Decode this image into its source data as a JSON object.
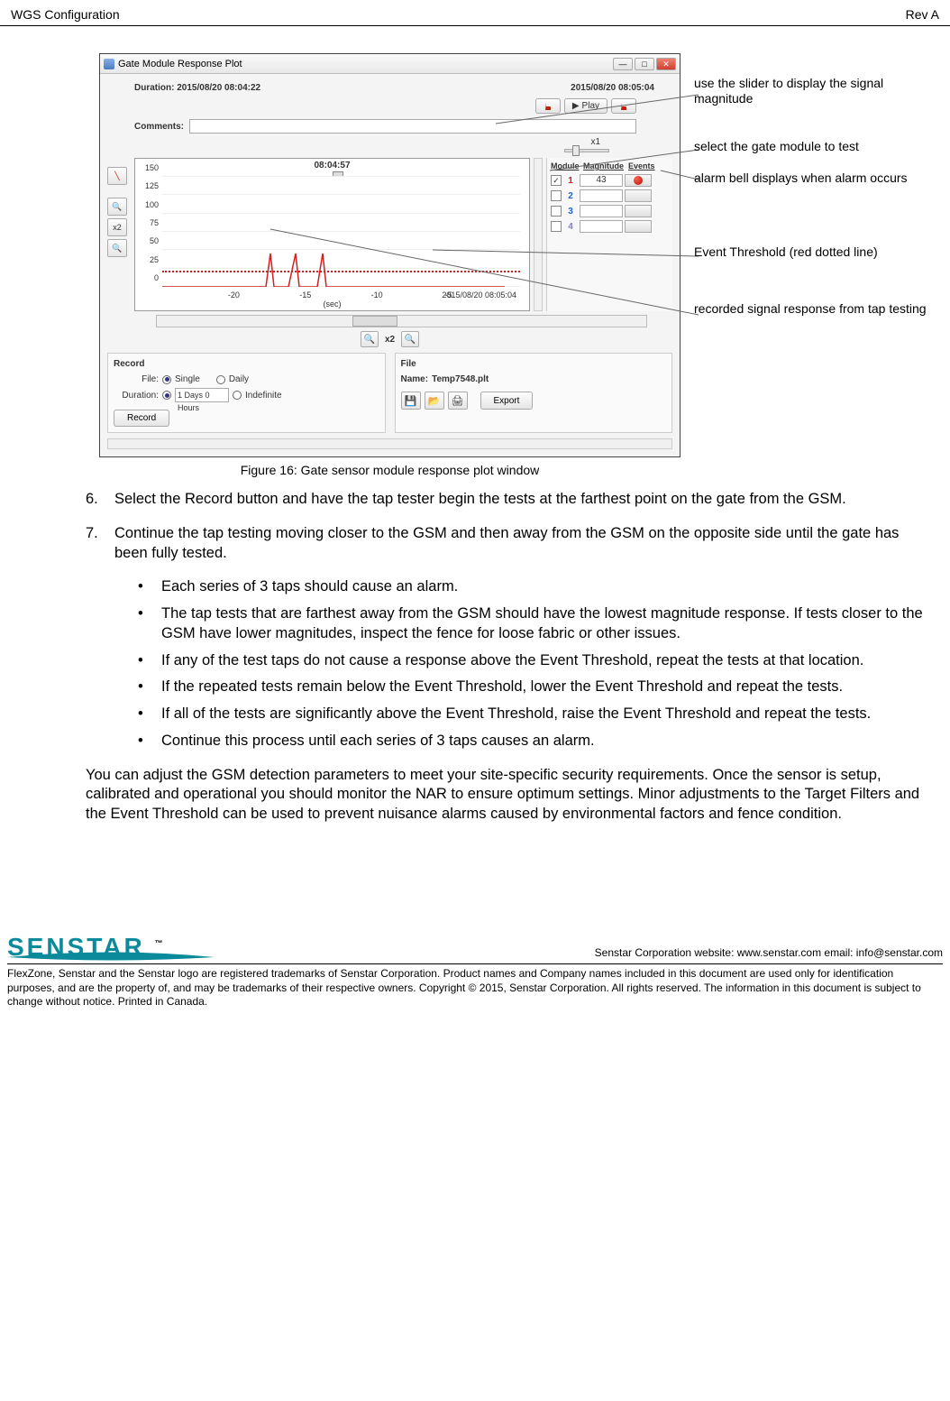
{
  "header": {
    "left": "WGS Configuration",
    "right": "Rev A"
  },
  "window": {
    "title": "Gate Module Response Plot",
    "duration_label": "Duration:",
    "duration_start": "2015/08/20 08:04:22",
    "duration_end": "2015/08/20 08:05:04",
    "comments_label": "Comments:",
    "play_label": "Play",
    "x1_label": "x1",
    "chart_time": "08:04:57",
    "xlabel": "(sec)",
    "x_timestamp": "2015/08/20 08:05:04",
    "y_ticks": [
      "150",
      "125",
      "100",
      "75",
      "50",
      "25",
      "0"
    ],
    "x_ticks": [
      "-20",
      "-15",
      "-10",
      "-5"
    ],
    "x_tick_pos": [
      20,
      40,
      60,
      80
    ],
    "threshold_color": "#d02020",
    "signal_color": "#d02020",
    "x2_label": "x2",
    "rp_headers": [
      "Module",
      "Magnitude",
      "Events"
    ],
    "rp_rows": [
      {
        "checked": true,
        "num": "1",
        "color": "#d02020",
        "mag": "43",
        "alarm": true
      },
      {
        "checked": false,
        "num": "2",
        "color": "#2060d0",
        "mag": "",
        "alarm": false
      },
      {
        "checked": false,
        "num": "3",
        "color": "#2060d0",
        "mag": "",
        "alarm": false
      },
      {
        "checked": false,
        "num": "4",
        "color": "#8080c0",
        "mag": "",
        "alarm": false
      }
    ],
    "record_title": "Record",
    "file_title": "File",
    "file_label": "File:",
    "single_label": "Single",
    "daily_label": "Daily",
    "duration2_label": "Duration:",
    "duration_value": "1 Days   0 Hours",
    "indefinite_label": "Indefinite",
    "record_btn": "Record",
    "name_label": "Name:",
    "name_value": "Temp7548.plt",
    "export_btn": "Export"
  },
  "annotations": {
    "a1": "use the slider to display the signal magnitude",
    "a2": "select the gate module to test",
    "a3": "alarm bell displays when alarm occurs",
    "a4": "Event Threshold (red dotted line)",
    "a5": "recorded signal response from tap testing"
  },
  "figure_caption": "Figure 16: Gate sensor module response plot window",
  "steps": {
    "s6_num": "6.",
    "s6": "Select the Record button and have the tap tester begin the tests at the farthest point on the gate from the GSM.",
    "s7_num": "7.",
    "s7": "Continue the tap testing moving closer to the GSM and then away from the GSM on the opposite side until the gate has been fully tested."
  },
  "bullets": [
    "Each series of 3 taps should cause an alarm.",
    "The tap tests that are farthest away from the GSM should have the lowest magnitude response. If tests closer to the GSM have lower magnitudes, inspect the fence for loose fabric or other issues.",
    "If any of the test taps do not cause a response above the Event Threshold, repeat the tests at that location.",
    "If the repeated tests remain below the Event Threshold, lower the Event Threshold and repeat the tests.",
    "If all of the tests are significantly above the Event Threshold, raise the Event Threshold and repeat the tests.",
    "Continue this process until each series of 3 taps causes an alarm."
  ],
  "final_para": "You can adjust the GSM detection parameters to meet your site-specific security requirements. Once the sensor is setup, calibrated and operational you should monitor the NAR to ensure optimum settings. Minor adjustments to the Target Filters and the Event Threshold can be used to prevent nuisance alarms caused by environmental factors and fence condition.",
  "footer": {
    "logo": "SENSTAR",
    "right": "Senstar Corporation    website: www.senstar.com    email: info@senstar.com",
    "legal": "FlexZone, Senstar and the Senstar logo are registered trademarks of Senstar Corporation. Product names and Company names included in this document are used only for identification purposes, and are the property of, and may be trademarks of their respective owners. Copyright © 2015, Senstar Corporation. All rights reserved. The information in this document is subject to change without notice. Printed in Canada."
  }
}
